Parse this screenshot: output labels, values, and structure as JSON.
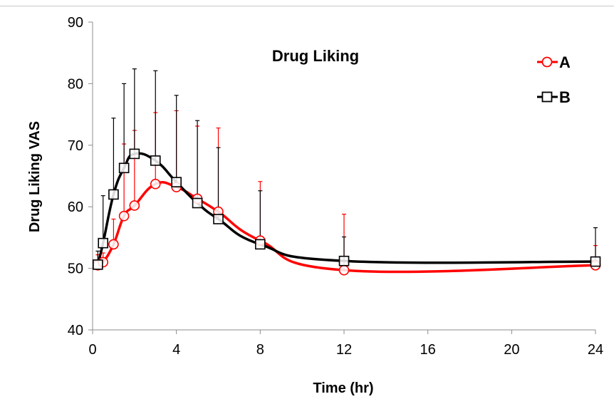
{
  "chart_data": {
    "type": "line",
    "title": "Drug Liking",
    "xlabel": "Time (hr)",
    "ylabel": "Drug Liking VAS",
    "xlim": [
      0,
      24
    ],
    "ylim": [
      40,
      90
    ],
    "xticks": [
      0,
      4,
      8,
      12,
      16,
      20,
      24
    ],
    "yticks": [
      40,
      50,
      60,
      70,
      80,
      90
    ],
    "grid": false,
    "legend_position": "top-right",
    "series": [
      {
        "name": "A",
        "color": "#ff0000",
        "marker": "circle",
        "x": [
          0.25,
          0.5,
          1,
          1.5,
          2,
          3,
          4,
          5,
          6,
          8,
          12,
          24
        ],
        "y": [
          50.5,
          51.0,
          53.9,
          58.5,
          60.2,
          63.7,
          63.2,
          61.3,
          59.2,
          54.5,
          49.7,
          50.5
        ],
        "error_upper": [
          52.2,
          52.5,
          58.0,
          70.2,
          72.4,
          75.3,
          75.6,
          73.1,
          72.8,
          64.1,
          58.8,
          53.7
        ]
      },
      {
        "name": "B",
        "color": "#000000",
        "marker": "square",
        "x": [
          0.25,
          0.5,
          1,
          1.5,
          2,
          3,
          4,
          5,
          6,
          8,
          12,
          24
        ],
        "y": [
          50.6,
          54.1,
          62.0,
          66.3,
          68.6,
          67.5,
          64.0,
          60.6,
          58.0,
          53.9,
          51.2,
          51.1
        ],
        "error_upper": [
          52.8,
          61.8,
          74.4,
          80.0,
          82.4,
          82.1,
          78.1,
          74.0,
          69.6,
          62.6,
          55.1,
          56.6
        ]
      }
    ]
  }
}
